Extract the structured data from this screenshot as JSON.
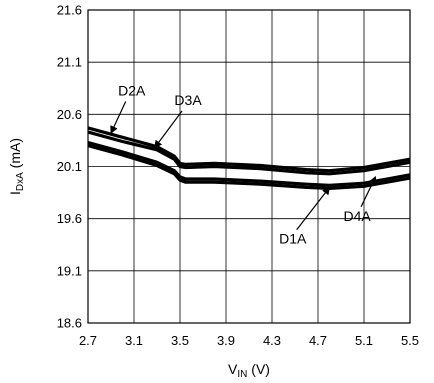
{
  "chart_data": {
    "type": "line",
    "xlabel_main": "V",
    "xlabel_sub": "IN",
    "xlabel_unit": " (V)",
    "ylabel_main": "I",
    "ylabel_sub": "DxA",
    "ylabel_unit": " (mA)",
    "xlim": [
      2.7,
      5.5
    ],
    "ylim": [
      18.6,
      21.6
    ],
    "x_ticks": [
      "2.7",
      "3.1",
      "3.5",
      "3.9",
      "4.3",
      "4.7",
      "5.1",
      "5.5"
    ],
    "y_ticks": [
      "21.6",
      "21.1",
      "20.6",
      "20.1",
      "19.6",
      "19.1",
      "18.6"
    ],
    "grid": true,
    "series": [
      {
        "name": "D2A",
        "points": [
          [
            2.7,
            20.47
          ],
          [
            3.0,
            20.38
          ],
          [
            3.3,
            20.29
          ],
          [
            3.45,
            20.2
          ],
          [
            3.5,
            20.13
          ],
          [
            3.55,
            20.12
          ],
          [
            3.8,
            20.13
          ],
          [
            4.2,
            20.11
          ],
          [
            4.6,
            20.07
          ],
          [
            4.8,
            20.06
          ],
          [
            5.1,
            20.09
          ],
          [
            5.5,
            20.17
          ]
        ]
      },
      {
        "name": "D3A",
        "points": [
          [
            2.7,
            20.43
          ],
          [
            3.0,
            20.34
          ],
          [
            3.3,
            20.26
          ],
          [
            3.45,
            20.17
          ],
          [
            3.5,
            20.1
          ],
          [
            3.55,
            20.09
          ],
          [
            3.8,
            20.1
          ],
          [
            4.2,
            20.08
          ],
          [
            4.6,
            20.04
          ],
          [
            4.8,
            20.03
          ],
          [
            5.1,
            20.06
          ],
          [
            5.5,
            20.14
          ]
        ]
      },
      {
        "name": "D1A",
        "points": [
          [
            2.7,
            20.33
          ],
          [
            3.0,
            20.24
          ],
          [
            3.3,
            20.14
          ],
          [
            3.45,
            20.06
          ],
          [
            3.5,
            20.0
          ],
          [
            3.55,
            19.98
          ],
          [
            3.8,
            19.98
          ],
          [
            4.2,
            19.96
          ],
          [
            4.6,
            19.93
          ],
          [
            4.8,
            19.92
          ],
          [
            5.1,
            19.94
          ],
          [
            5.5,
            20.02
          ]
        ]
      },
      {
        "name": "D4A",
        "points": [
          [
            2.7,
            20.3
          ],
          [
            3.0,
            20.21
          ],
          [
            3.3,
            20.11
          ],
          [
            3.45,
            20.03
          ],
          [
            3.5,
            19.97
          ],
          [
            3.55,
            19.95
          ],
          [
            3.8,
            19.95
          ],
          [
            4.2,
            19.93
          ],
          [
            4.6,
            19.9
          ],
          [
            4.8,
            19.89
          ],
          [
            5.1,
            19.91
          ],
          [
            5.5,
            19.99
          ]
        ]
      }
    ],
    "annotations": [
      {
        "text": "D2A",
        "label": [
          3.08,
          20.78
        ],
        "arrow_to": [
          2.9,
          20.42
        ]
      },
      {
        "text": "D3A",
        "label": [
          3.57,
          20.69
        ],
        "arrow_to": [
          3.28,
          20.28
        ]
      },
      {
        "text": "D1A",
        "label": [
          4.48,
          19.36
        ],
        "arrow_to": [
          4.8,
          19.9
        ]
      },
      {
        "text": "D4A",
        "label": [
          5.04,
          19.58
        ],
        "arrow_to": [
          5.2,
          20.0
        ]
      }
    ]
  }
}
